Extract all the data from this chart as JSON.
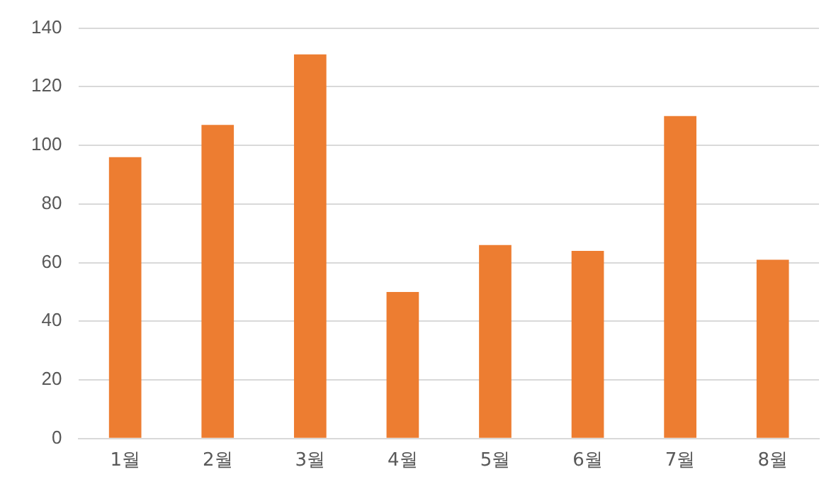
{
  "chart_data": {
    "type": "bar",
    "categories": [
      "1월",
      "2월",
      "3월",
      "4월",
      "5월",
      "6월",
      "7월",
      "8월"
    ],
    "values": [
      96,
      107,
      131,
      50,
      66,
      64,
      110,
      61
    ],
    "color": "#ed7d31",
    "ylim": [
      0,
      140
    ],
    "yticks": [
      0,
      20,
      40,
      60,
      80,
      100,
      120,
      140
    ],
    "grid": "y"
  }
}
